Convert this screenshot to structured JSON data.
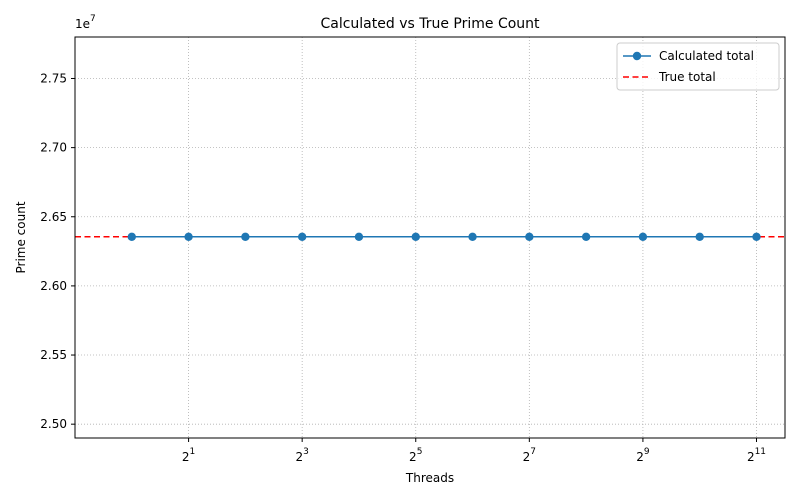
{
  "chart_data": {
    "type": "line",
    "title": "Calculated vs True Prime Count",
    "xlabel": "Threads",
    "ylabel": "Prime count",
    "x_scale": "log2",
    "x": [
      1,
      2,
      4,
      8,
      16,
      32,
      64,
      128,
      256,
      512,
      1024,
      2048
    ],
    "xlim": [
      0.5,
      2900
    ],
    "x_ticks": [
      {
        "value": 2,
        "base": "2",
        "exp": "1"
      },
      {
        "value": 8,
        "base": "2",
        "exp": "3"
      },
      {
        "value": 32,
        "base": "2",
        "exp": "5"
      },
      {
        "value": 128,
        "base": "2",
        "exp": "7"
      },
      {
        "value": 512,
        "base": "2",
        "exp": "9"
      },
      {
        "value": 2048,
        "base": "2",
        "exp": "11"
      }
    ],
    "ylim": [
      24900000,
      27800000
    ],
    "y_ticks": [
      {
        "value": 25000000,
        "label": "2.50"
      },
      {
        "value": 25500000,
        "label": "2.55"
      },
      {
        "value": 26000000,
        "label": "2.60"
      },
      {
        "value": 26500000,
        "label": "2.65"
      },
      {
        "value": 27000000,
        "label": "2.70"
      },
      {
        "value": 27500000,
        "label": "2.75"
      }
    ],
    "y_offset_base": "1e",
    "y_offset_exp": "7",
    "grid": true,
    "legend_position": "top-right",
    "series": [
      {
        "name": "Calculated total",
        "color": "#1f77b4",
        "style": "line-with-markers",
        "values": [
          26355111,
          26355111,
          26355111,
          26355111,
          26355111,
          26355111,
          26355111,
          26355111,
          26355111,
          26355111,
          26355111,
          26355111
        ]
      }
    ],
    "reference_lines": [
      {
        "name": "True total",
        "color": "#ff0000",
        "style": "dashed",
        "y": 26355111
      }
    ]
  }
}
